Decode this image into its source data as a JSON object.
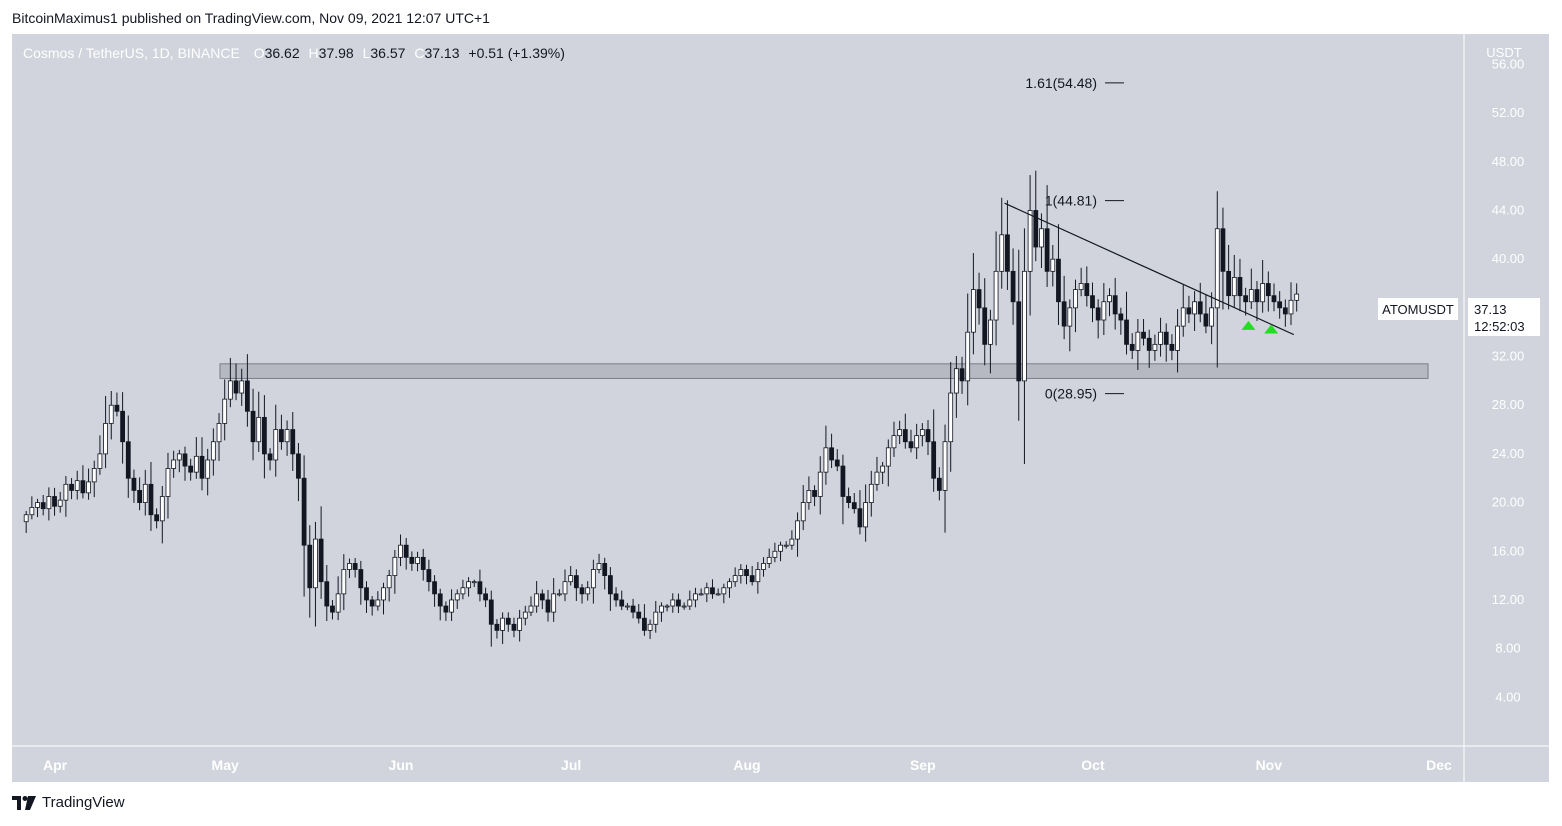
{
  "header": {
    "published": "BitcoinMaximus1 published on TradingView.com, Nov 09, 2021 12:07 UTC+1"
  },
  "legend": {
    "symbol": "Cosmos / TetherUS, 1D, BINANCE",
    "o_label": "O",
    "o_value": "36.62",
    "h_label": "H",
    "h_value": "37.98",
    "l_label": "L",
    "l_value": "36.57",
    "c_label": "C",
    "c_value": "37.13",
    "change": "+0.51 (+1.39%)"
  },
  "price_axis": {
    "currency": "USDT",
    "ticks": [
      "56.00",
      "52.00",
      "48.00",
      "44.00",
      "40.00",
      "36.00",
      "32.00",
      "28.00",
      "24.00",
      "20.00",
      "16.00",
      "12.00",
      "8.00",
      "4.00"
    ]
  },
  "time_axis": {
    "ticks": [
      "Apr",
      "May",
      "Jun",
      "Jul",
      "Aug",
      "Sep",
      "Oct",
      "Nov",
      "Dec"
    ]
  },
  "price_label": {
    "ticker": "ATOMUSDT",
    "price": "37.13",
    "countdown": "12:52:03"
  },
  "fib_levels": [
    {
      "label": "1.61(54.48)",
      "value": 54.48
    },
    {
      "label": "1(44.81)",
      "value": 44.81
    },
    {
      "label": "0(28.95)",
      "value": 28.95
    }
  ],
  "footer": {
    "brand": "TradingView"
  },
  "colors": {
    "background": "#d1d4dc",
    "up_body": "#ffffff",
    "down_body": "#131722",
    "wick": "#131722",
    "zone": "#9598a1",
    "arrow": "#22dd22"
  },
  "chart_data": {
    "type": "candlestick",
    "title": "Cosmos / TetherUS, 1D, BINANCE",
    "ylim": [
      0,
      58.5
    ],
    "x_start": "2021-03-29",
    "x_end": "2021-12-10",
    "month_ticks": [
      {
        "label": "Apr",
        "date": "2021-04-01"
      },
      {
        "label": "May",
        "date": "2021-05-01"
      },
      {
        "label": "Jun",
        "date": "2021-06-01"
      },
      {
        "label": "Jul",
        "date": "2021-07-01"
      },
      {
        "label": "Aug",
        "date": "2021-08-01"
      },
      {
        "label": "Sep",
        "date": "2021-09-01"
      },
      {
        "label": "Oct",
        "date": "2021-10-01"
      },
      {
        "label": "Nov",
        "date": "2021-11-01"
      },
      {
        "label": "Dec",
        "date": "2021-12-01"
      }
    ],
    "closes_start_date": "2021-03-31",
    "closes": [
      19.0,
      19.6,
      20.0,
      19.5,
      20.5,
      19.7,
      20.2,
      21.5,
      21.0,
      21.8,
      20.8,
      21.7,
      22.8,
      24.0,
      26.5,
      28.0,
      27.5,
      25.0,
      22.0,
      21.0,
      20.0,
      21.5,
      19.0,
      18.5,
      20.5,
      22.8,
      23.5,
      24.0,
      23.0,
      22.5,
      23.8,
      22.0,
      23.5,
      25.0,
      26.5,
      28.5,
      30.0,
      29.0,
      30.0,
      27.5,
      25.0,
      27.0,
      24.0,
      23.5,
      26.0,
      25.0,
      26.0,
      24.0,
      22.0,
      16.5,
      13.0,
      17.0,
      13.5,
      11.5,
      11.0,
      12.5,
      14.5,
      15.0,
      14.5,
      13.0,
      12.0,
      11.5,
      12.0,
      13.0,
      14.0,
      15.5,
      16.5,
      15.5,
      15.0,
      15.5,
      14.5,
      13.5,
      12.5,
      11.5,
      11.0,
      12.0,
      12.5,
      13.0,
      13.5,
      13.5,
      12.5,
      12.0,
      10.0,
      9.5,
      10.5,
      10.0,
      9.5,
      10.5,
      11.0,
      11.5,
      12.5,
      12.0,
      11.0,
      12.5,
      12.5,
      13.5,
      14.0,
      13.0,
      12.5,
      13.0,
      14.5,
      15.0,
      14.0,
      12.5,
      12.0,
      11.5,
      11.5,
      11.0,
      10.5,
      9.5,
      10.0,
      11.0,
      11.5,
      11.5,
      12.0,
      11.5,
      11.5,
      12.0,
      12.5,
      12.5,
      13.0,
      12.5,
      12.5,
      13.0,
      13.5,
      14.0,
      14.5,
      14.0,
      13.5,
      14.5,
      15.0,
      15.5,
      16.0,
      16.5,
      16.5,
      17.0,
      18.5,
      20.0,
      21.0,
      20.5,
      22.5,
      24.5,
      23.5,
      23.0,
      20.5,
      20.0,
      19.5,
      18.0,
      20.0,
      21.5,
      22.5,
      23.0,
      24.5,
      25.5,
      26.0,
      25.0,
      24.5,
      25.5,
      26.0,
      25.0,
      22.0,
      21.0,
      25.0,
      29.0,
      31.0,
      30.0,
      34.0,
      37.5,
      36.0,
      33.0,
      35.0,
      39.0,
      42.0,
      39.0,
      36.5,
      30.0,
      39.0,
      44.0,
      41.0,
      42.5,
      39.0,
      40.0,
      36.5,
      34.5,
      36.0,
      37.5,
      38.0,
      37.0,
      36.0,
      35.0,
      36.5,
      37.0,
      35.5,
      35.0,
      33.0,
      32.5,
      34.0,
      33.5,
      32.5,
      33.0,
      34.0,
      33.0,
      32.5,
      34.5,
      36.0,
      35.5,
      36.5,
      35.5,
      34.5,
      36.0,
      42.5,
      39.0,
      37.0,
      38.5,
      37.0,
      36.5,
      37.5,
      36.5,
      38.0,
      37.0,
      36.5,
      36.0,
      35.5,
      36.62,
      37.13
    ],
    "support_zone": [
      30.2,
      31.4
    ],
    "descending_trendline": [
      {
        "date": "2021-09-20",
        "value": 44.6
      },
      {
        "date": "2021-11-10",
        "value": 33.8
      }
    ],
    "markers": [
      {
        "type": "up-arrow",
        "date": "2021-11-02",
        "value": 34.6
      },
      {
        "type": "up-arrow",
        "date": "2021-11-06",
        "value": 34.3
      }
    ]
  }
}
